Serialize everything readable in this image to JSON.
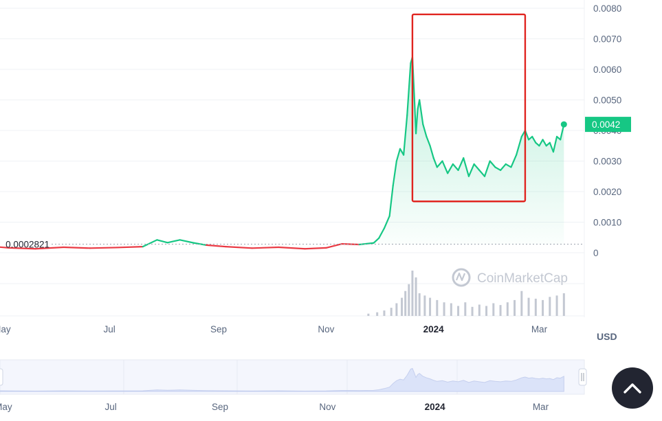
{
  "chart_data": {
    "type": "line",
    "y_axis": {
      "ticks": [
        "0.0080",
        "0.0070",
        "0.0060",
        "0.0050",
        "0.0040",
        "0.0030",
        "0.0020",
        "0.0010",
        "0"
      ],
      "tick_values": [
        0.008,
        0.007,
        0.006,
        0.005,
        0.004,
        0.003,
        0.002,
        0.001,
        0
      ],
      "ylim": [
        0,
        0.008
      ],
      "unit": "USD"
    },
    "x_axis": {
      "ticks": [
        "May",
        "Jul",
        "Sep",
        "Nov",
        "2024",
        "Mar"
      ],
      "tick_dates": [
        "2023-05-01",
        "2023-07-01",
        "2023-09-01",
        "2023-11-01",
        "2024-01-01",
        "2024-03-01"
      ],
      "xlim": [
        "2023-04-01",
        "2024-03-18"
      ]
    },
    "baseline": {
      "value": 0.0002821,
      "label": "0.0002821"
    },
    "current_price": {
      "value": 0.0042,
      "label": "0.0042"
    },
    "series": [
      {
        "x": [
          "2023-04-20",
          "2023-05-05",
          "2023-05-20",
          "2023-06-05",
          "2023-06-20",
          "2023-07-05",
          "2023-07-20",
          "2023-07-28",
          "2023-08-03",
          "2023-08-10",
          "2023-08-18",
          "2023-08-25",
          "2023-09-05",
          "2023-09-20",
          "2023-10-05",
          "2023-10-20",
          "2023-11-01",
          "2023-11-10",
          "2023-11-20",
          "2023-11-28",
          "2023-12-01",
          "2023-12-04",
          "2023-12-07",
          "2023-12-09",
          "2023-12-11",
          "2023-12-13",
          "2023-12-15",
          "2023-12-17",
          "2023-12-19",
          "2023-12-20",
          "2023-12-21",
          "2023-12-22",
          "2023-12-23",
          "2023-12-24",
          "2023-12-26",
          "2023-12-28",
          "2023-12-30",
          "2024-01-01",
          "2024-01-03",
          "2024-01-06",
          "2024-01-09",
          "2024-01-12",
          "2024-01-15",
          "2024-01-18",
          "2024-01-21",
          "2024-01-24",
          "2024-01-27",
          "2024-01-30",
          "2024-02-02",
          "2024-02-05",
          "2024-02-08",
          "2024-02-11",
          "2024-02-14",
          "2024-02-17",
          "2024-02-20",
          "2024-02-22",
          "2024-02-24",
          "2024-02-26",
          "2024-02-28",
          "2024-03-01",
          "2024-03-03",
          "2024-03-05",
          "2024-03-07",
          "2024-03-09",
          "2024-03-11",
          "2024-03-13",
          "2024-03-15"
        ],
        "y": [
          0.00023,
          0.00016,
          0.00013,
          0.00018,
          0.00015,
          0.00017,
          0.0002,
          0.00042,
          0.00033,
          0.00042,
          0.00032,
          0.00025,
          0.0002,
          0.00015,
          0.00018,
          0.00013,
          0.00016,
          0.00029,
          0.00027,
          0.00032,
          0.00048,
          0.0008,
          0.0012,
          0.0022,
          0.003,
          0.0034,
          0.0032,
          0.0045,
          0.0062,
          0.0064,
          0.0052,
          0.0039,
          0.0047,
          0.005,
          0.0042,
          0.0038,
          0.0035,
          0.0031,
          0.0028,
          0.003,
          0.0026,
          0.0029,
          0.0027,
          0.0031,
          0.0025,
          0.0029,
          0.0027,
          0.0025,
          0.003,
          0.0028,
          0.0027,
          0.0029,
          0.0028,
          0.0032,
          0.0038,
          0.004,
          0.0037,
          0.0038,
          0.0036,
          0.0035,
          0.0037,
          0.0035,
          0.0036,
          0.0033,
          0.0038,
          0.0037,
          0.0042
        ]
      }
    ],
    "volume": {
      "x": [
        "2023-11-25",
        "2023-11-30",
        "2023-12-04",
        "2023-12-08",
        "2023-12-11",
        "2023-12-14",
        "2023-12-16",
        "2023-12-18",
        "2023-12-20",
        "2023-12-22",
        "2023-12-24",
        "2023-12-27",
        "2023-12-30",
        "2024-01-03",
        "2024-01-07",
        "2024-01-11",
        "2024-01-15",
        "2024-01-19",
        "2024-01-23",
        "2024-01-27",
        "2024-01-31",
        "2024-02-04",
        "2024-02-08",
        "2024-02-12",
        "2024-02-16",
        "2024-02-20",
        "2024-02-24",
        "2024-02-28",
        "2024-03-03",
        "2024-03-07",
        "2024-03-11",
        "2024-03-15"
      ],
      "values": [
        0.05,
        0.08,
        0.12,
        0.18,
        0.28,
        0.4,
        0.55,
        0.7,
        1.0,
        0.85,
        0.5,
        0.45,
        0.4,
        0.35,
        0.3,
        0.28,
        0.22,
        0.3,
        0.2,
        0.25,
        0.22,
        0.28,
        0.24,
        0.3,
        0.35,
        0.55,
        0.4,
        0.38,
        0.35,
        0.42,
        0.45,
        0.5
      ]
    },
    "navigator": {
      "x_ticks": [
        "May",
        "Jul",
        "Sep",
        "Nov",
        "2024",
        "Mar"
      ]
    },
    "annotations": [
      {
        "type": "rectangle",
        "color": "#e0241f",
        "x_from": "2023-12-20",
        "x_to": "2024-02-22",
        "y_from": 0.00168,
        "y_to": 0.0078
      }
    ],
    "watermark": "CoinMarketCap",
    "colors": {
      "up": "#16c784",
      "down": "#ea3943",
      "area_fill": "#16c784",
      "volume": "#c3c8d2",
      "navigator_fill": "#dbe3f9",
      "highlight_box": "#e0241f"
    },
    "grid": true
  },
  "ui": {
    "scroll_top_icon": "chevron-up-icon"
  }
}
